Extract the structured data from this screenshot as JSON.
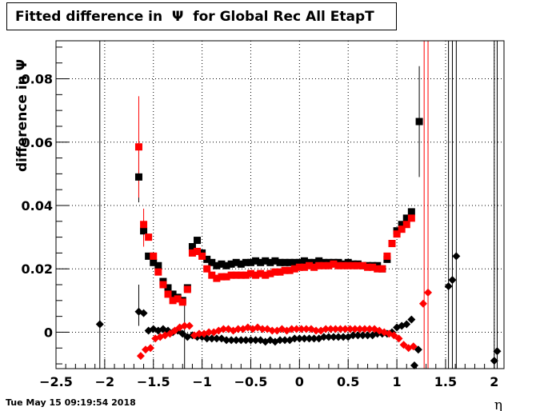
{
  "title": "Fitted difference in  Ψ  for Global Rec All EtapT",
  "timestamp": "Tue May 15 09:19:54 2018",
  "chart_data": {
    "type": "scatter",
    "xlabel": "η",
    "ylabel": "difference in  Ψ",
    "xlim": [
      -2.5,
      2.1
    ],
    "ylim": [
      -0.0115,
      0.092
    ],
    "x_ticks": [
      "−2.5",
      "−2",
      "−1.5",
      "−1",
      "−0.5",
      "0",
      "0.5",
      "1",
      "1.5",
      "2"
    ],
    "y_ticks": [
      "0",
      "0.02",
      "0.04",
      "0.06",
      "0.08"
    ],
    "grid": true,
    "colors": {
      "black": "#000000",
      "red": "#ff0000"
    },
    "series": [
      {
        "marker": "square",
        "color": "#000000",
        "points": [
          [
            -1.65,
            0.049
          ],
          [
            -1.6,
            0.032
          ],
          [
            -1.55,
            0.024
          ],
          [
            -1.5,
            0.022
          ],
          [
            -1.45,
            0.021
          ],
          [
            -1.4,
            0.016
          ],
          [
            -1.35,
            0.014
          ],
          [
            -1.3,
            0.012
          ],
          [
            -1.25,
            0.011
          ],
          [
            -1.2,
            0.01
          ],
          [
            -1.15,
            0.014
          ],
          [
            -1.1,
            0.027
          ],
          [
            -1.05,
            0.029
          ],
          [
            -1.0,
            0.025
          ],
          [
            -0.95,
            0.023
          ],
          [
            -0.9,
            0.022
          ],
          [
            -0.85,
            0.021
          ],
          [
            -0.8,
            0.0215
          ],
          [
            -0.75,
            0.021
          ],
          [
            -0.7,
            0.0215
          ],
          [
            -0.65,
            0.022
          ],
          [
            -0.6,
            0.0215
          ],
          [
            -0.55,
            0.022
          ],
          [
            -0.5,
            0.022
          ],
          [
            -0.45,
            0.0225
          ],
          [
            -0.4,
            0.022
          ],
          [
            -0.35,
            0.0225
          ],
          [
            -0.3,
            0.022
          ],
          [
            -0.25,
            0.0225
          ],
          [
            -0.2,
            0.022
          ],
          [
            -0.15,
            0.022
          ],
          [
            -0.1,
            0.022
          ],
          [
            -0.05,
            0.022
          ],
          [
            0.0,
            0.022
          ],
          [
            0.05,
            0.0225
          ],
          [
            0.1,
            0.022
          ],
          [
            0.15,
            0.022
          ],
          [
            0.2,
            0.0225
          ],
          [
            0.25,
            0.022
          ],
          [
            0.3,
            0.022
          ],
          [
            0.35,
            0.022
          ],
          [
            0.4,
            0.022
          ],
          [
            0.45,
            0.0215
          ],
          [
            0.5,
            0.022
          ],
          [
            0.55,
            0.0215
          ],
          [
            0.6,
            0.0215
          ],
          [
            0.65,
            0.021
          ],
          [
            0.7,
            0.021
          ],
          [
            0.75,
            0.021
          ],
          [
            0.8,
            0.021
          ],
          [
            0.85,
            0.02
          ],
          [
            0.9,
            0.023
          ],
          [
            0.95,
            0.028
          ],
          [
            1.0,
            0.032
          ],
          [
            1.05,
            0.034
          ],
          [
            1.1,
            0.036
          ],
          [
            1.15,
            0.038
          ],
          [
            1.23,
            0.0665
          ]
        ]
      },
      {
        "marker": "square",
        "color": "#ff0000",
        "points": [
          [
            -1.65,
            0.0585
          ],
          [
            -1.6,
            0.034
          ],
          [
            -1.55,
            0.03
          ],
          [
            -1.5,
            0.024
          ],
          [
            -1.45,
            0.019
          ],
          [
            -1.4,
            0.015
          ],
          [
            -1.35,
            0.012
          ],
          [
            -1.3,
            0.01
          ],
          [
            -1.25,
            0.0105
          ],
          [
            -1.2,
            0.0095
          ],
          [
            -1.15,
            0.0135
          ],
          [
            -1.1,
            0.025
          ],
          [
            -1.05,
            0.0255
          ],
          [
            -1.0,
            0.024
          ],
          [
            -0.95,
            0.02
          ],
          [
            -0.9,
            0.018
          ],
          [
            -0.85,
            0.017
          ],
          [
            -0.8,
            0.0175
          ],
          [
            -0.75,
            0.0175
          ],
          [
            -0.7,
            0.018
          ],
          [
            -0.65,
            0.018
          ],
          [
            -0.6,
            0.018
          ],
          [
            -0.55,
            0.018
          ],
          [
            -0.5,
            0.0185
          ],
          [
            -0.45,
            0.018
          ],
          [
            -0.4,
            0.0185
          ],
          [
            -0.35,
            0.018
          ],
          [
            -0.3,
            0.0185
          ],
          [
            -0.25,
            0.019
          ],
          [
            -0.2,
            0.019
          ],
          [
            -0.15,
            0.0195
          ],
          [
            -0.1,
            0.0195
          ],
          [
            -0.05,
            0.02
          ],
          [
            0.0,
            0.0205
          ],
          [
            0.05,
            0.0205
          ],
          [
            0.1,
            0.021
          ],
          [
            0.15,
            0.0205
          ],
          [
            0.2,
            0.021
          ],
          [
            0.25,
            0.021
          ],
          [
            0.3,
            0.021
          ],
          [
            0.35,
            0.0215
          ],
          [
            0.4,
            0.021
          ],
          [
            0.45,
            0.021
          ],
          [
            0.5,
            0.021
          ],
          [
            0.55,
            0.021
          ],
          [
            0.6,
            0.021
          ],
          [
            0.65,
            0.021
          ],
          [
            0.7,
            0.0205
          ],
          [
            0.75,
            0.0205
          ],
          [
            0.8,
            0.02
          ],
          [
            0.85,
            0.02
          ],
          [
            0.9,
            0.024
          ],
          [
            0.95,
            0.028
          ],
          [
            1.0,
            0.031
          ],
          [
            1.05,
            0.0325
          ],
          [
            1.1,
            0.034
          ],
          [
            1.15,
            0.036
          ]
        ]
      },
      {
        "marker": "diamond",
        "color": "#000000",
        "points": [
          [
            -2.05,
            0.0025
          ],
          [
            -1.65,
            0.0065
          ],
          [
            -1.6,
            0.006
          ],
          [
            -1.55,
            0.0005
          ],
          [
            -1.5,
            0.001
          ],
          [
            -1.45,
            0.0005
          ],
          [
            -1.4,
            0.001
          ],
          [
            -1.35,
            0.0005
          ],
          [
            -1.3,
            0.0
          ],
          [
            -1.25,
            0.0005
          ],
          [
            -1.2,
            -0.0005
          ],
          [
            -1.15,
            -0.0015
          ],
          [
            -1.1,
            -0.001
          ],
          [
            -1.05,
            -0.0015
          ],
          [
            -1.0,
            -0.0015
          ],
          [
            -0.95,
            -0.002
          ],
          [
            -0.9,
            -0.002
          ],
          [
            -0.85,
            -0.002
          ],
          [
            -0.8,
            -0.002
          ],
          [
            -0.75,
            -0.0025
          ],
          [
            -0.7,
            -0.0025
          ],
          [
            -0.65,
            -0.0025
          ],
          [
            -0.6,
            -0.0025
          ],
          [
            -0.55,
            -0.0025
          ],
          [
            -0.5,
            -0.0025
          ],
          [
            -0.45,
            -0.0025
          ],
          [
            -0.4,
            -0.0025
          ],
          [
            -0.35,
            -0.003
          ],
          [
            -0.3,
            -0.0025
          ],
          [
            -0.25,
            -0.003
          ],
          [
            -0.2,
            -0.0025
          ],
          [
            -0.15,
            -0.0025
          ],
          [
            -0.1,
            -0.0025
          ],
          [
            -0.05,
            -0.002
          ],
          [
            0.0,
            -0.002
          ],
          [
            0.05,
            -0.002
          ],
          [
            0.1,
            -0.002
          ],
          [
            0.15,
            -0.002
          ],
          [
            0.2,
            -0.002
          ],
          [
            0.25,
            -0.0015
          ],
          [
            0.3,
            -0.0015
          ],
          [
            0.35,
            -0.0015
          ],
          [
            0.4,
            -0.0015
          ],
          [
            0.45,
            -0.0015
          ],
          [
            0.5,
            -0.0015
          ],
          [
            0.55,
            -0.001
          ],
          [
            0.6,
            -0.001
          ],
          [
            0.65,
            -0.001
          ],
          [
            0.7,
            -0.001
          ],
          [
            0.75,
            -0.001
          ],
          [
            0.8,
            -0.0005
          ],
          [
            0.85,
            -0.0005
          ],
          [
            0.9,
            -0.0005
          ],
          [
            0.95,
            0.0
          ],
          [
            1.0,
            0.0015
          ],
          [
            1.05,
            0.002
          ],
          [
            1.1,
            0.0025
          ],
          [
            1.15,
            0.004
          ],
          [
            1.18,
            -0.0105
          ],
          [
            1.22,
            -0.0055
          ],
          [
            1.53,
            0.0145
          ],
          [
            1.57,
            0.0165
          ],
          [
            1.61,
            0.024
          ],
          [
            2.0,
            -0.009
          ],
          [
            2.03,
            -0.006
          ]
        ]
      },
      {
        "marker": "diamond",
        "color": "#ff0000",
        "points": [
          [
            -1.63,
            -0.0075
          ],
          [
            -1.58,
            -0.0055
          ],
          [
            -1.53,
            -0.005
          ],
          [
            -1.48,
            -0.002
          ],
          [
            -1.43,
            -0.0015
          ],
          [
            -1.38,
            -0.001
          ],
          [
            -1.33,
            -0.0005
          ],
          [
            -1.28,
            0.0005
          ],
          [
            -1.23,
            0.0015
          ],
          [
            -1.18,
            0.002
          ],
          [
            -1.13,
            0.002
          ],
          [
            -1.08,
            -0.001
          ],
          [
            -1.03,
            -0.0005
          ],
          [
            -0.98,
            -0.0005
          ],
          [
            -0.93,
            0.0
          ],
          [
            -0.88,
            0.0
          ],
          [
            -0.83,
            0.0005
          ],
          [
            -0.78,
            0.001
          ],
          [
            -0.73,
            0.001
          ],
          [
            -0.68,
            0.0005
          ],
          [
            -0.63,
            0.001
          ],
          [
            -0.58,
            0.001
          ],
          [
            -0.53,
            0.0015
          ],
          [
            -0.48,
            0.001
          ],
          [
            -0.43,
            0.0015
          ],
          [
            -0.38,
            0.001
          ],
          [
            -0.33,
            0.001
          ],
          [
            -0.28,
            0.0005
          ],
          [
            -0.23,
            0.0005
          ],
          [
            -0.18,
            0.001
          ],
          [
            -0.13,
            0.0005
          ],
          [
            -0.08,
            0.001
          ],
          [
            -0.03,
            0.001
          ],
          [
            0.02,
            0.001
          ],
          [
            0.07,
            0.001
          ],
          [
            0.12,
            0.001
          ],
          [
            0.17,
            0.0005
          ],
          [
            0.22,
            0.0005
          ],
          [
            0.27,
            0.001
          ],
          [
            0.32,
            0.001
          ],
          [
            0.37,
            0.001
          ],
          [
            0.42,
            0.001
          ],
          [
            0.47,
            0.001
          ],
          [
            0.52,
            0.001
          ],
          [
            0.57,
            0.001
          ],
          [
            0.62,
            0.001
          ],
          [
            0.67,
            0.001
          ],
          [
            0.72,
            0.001
          ],
          [
            0.77,
            0.001
          ],
          [
            0.82,
            0.0005
          ],
          [
            0.87,
            0.0
          ],
          [
            0.92,
            -0.0005
          ],
          [
            0.97,
            -0.001
          ],
          [
            1.02,
            -0.002
          ],
          [
            1.07,
            -0.004
          ],
          [
            1.12,
            -0.005
          ],
          [
            1.17,
            -0.0045
          ],
          [
            1.27,
            0.009
          ],
          [
            1.32,
            0.0125
          ]
        ]
      }
    ],
    "error_bars": [
      {
        "x": -2.05,
        "lo": -0.0115,
        "hi": 0.092,
        "color": "#000000"
      },
      {
        "x": -1.65,
        "lo": 0.041,
        "hi": 0.057,
        "color": "#000000"
      },
      {
        "x": -1.65,
        "lo": 0.0425,
        "hi": 0.0745,
        "color": "#ff0000"
      },
      {
        "x": -1.65,
        "lo": 0.002,
        "hi": 0.015,
        "color": "#000000"
      },
      {
        "x": -1.6,
        "lo": 0.027,
        "hi": 0.039,
        "color": "#ff0000"
      },
      {
        "x": -1.18,
        "lo": -0.0115,
        "hi": 0.01,
        "color": "#000000"
      },
      {
        "x": 1.23,
        "lo": 0.049,
        "hi": 0.084,
        "color": "#000000"
      },
      {
        "x": 1.28,
        "lo": -0.0115,
        "hi": 0.092,
        "color": "#ff0000"
      },
      {
        "x": 1.32,
        "lo": -0.0115,
        "hi": 0.092,
        "color": "#ff0000"
      },
      {
        "x": 1.53,
        "lo": -0.0115,
        "hi": 0.092,
        "color": "#000000"
      },
      {
        "x": 1.57,
        "lo": -0.0115,
        "hi": 0.092,
        "color": "#000000"
      },
      {
        "x": 1.61,
        "lo": -0.0115,
        "hi": 0.092,
        "color": "#000000"
      },
      {
        "x": 2.0,
        "lo": -0.0115,
        "hi": 0.092,
        "color": "#000000"
      },
      {
        "x": 2.03,
        "lo": -0.0115,
        "hi": 0.092,
        "color": "#000000"
      }
    ]
  }
}
